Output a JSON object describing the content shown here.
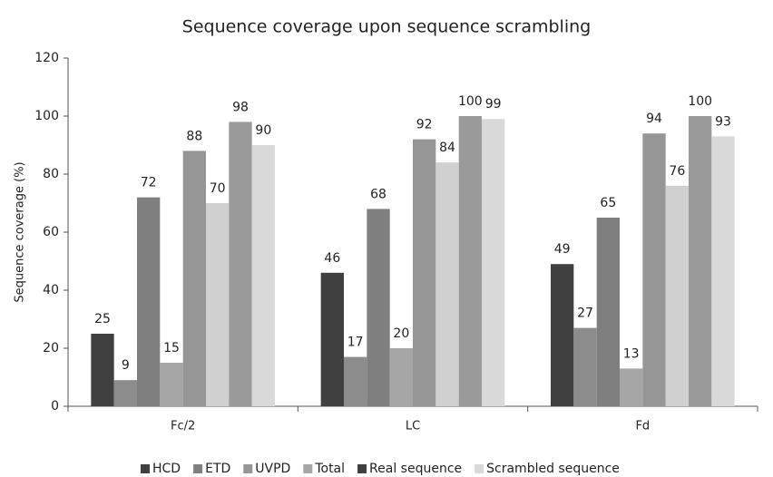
{
  "chart_data": {
    "type": "bar",
    "title": "Sequence coverage upon sequence scrambling",
    "y_label": "Sequence coverage (%)",
    "categories": [
      "Fc/2",
      "LC",
      "Fd"
    ],
    "series": [
      {
        "color": "#404040",
        "values": [
          25,
          46,
          49
        ]
      },
      {
        "color": "#8c8c8c",
        "values": [
          9,
          17,
          27
        ]
      },
      {
        "color": "#7f7f7f",
        "values": [
          72,
          68,
          65
        ]
      },
      {
        "color": "#a6a6a6",
        "values": [
          15,
          20,
          13
        ]
      },
      {
        "color": "#969696",
        "values": [
          88,
          92,
          94
        ]
      },
      {
        "color": "#d0d0d0",
        "values": [
          70,
          84,
          76
        ]
      },
      {
        "color": "#9a9a9a",
        "values": [
          98,
          100,
          100
        ]
      },
      {
        "color": "#d9d9d9",
        "values": [
          90,
          99,
          93
        ]
      }
    ],
    "legend": [
      {
        "name": "HCD",
        "color": "#404040"
      },
      {
        "name": "ETD",
        "color": "#808080"
      },
      {
        "name": "UVPD",
        "color": "#969696"
      },
      {
        "name": "Total",
        "color": "#a6a6a6"
      },
      {
        "name": "Real sequence",
        "color": "#404040"
      },
      {
        "name": "Scrambled sequence",
        "color": "#d9d9d9"
      }
    ],
    "ylim": [
      0,
      120
    ],
    "yticks": [
      0,
      20,
      40,
      60,
      80,
      100,
      120
    ],
    "grid": false
  }
}
